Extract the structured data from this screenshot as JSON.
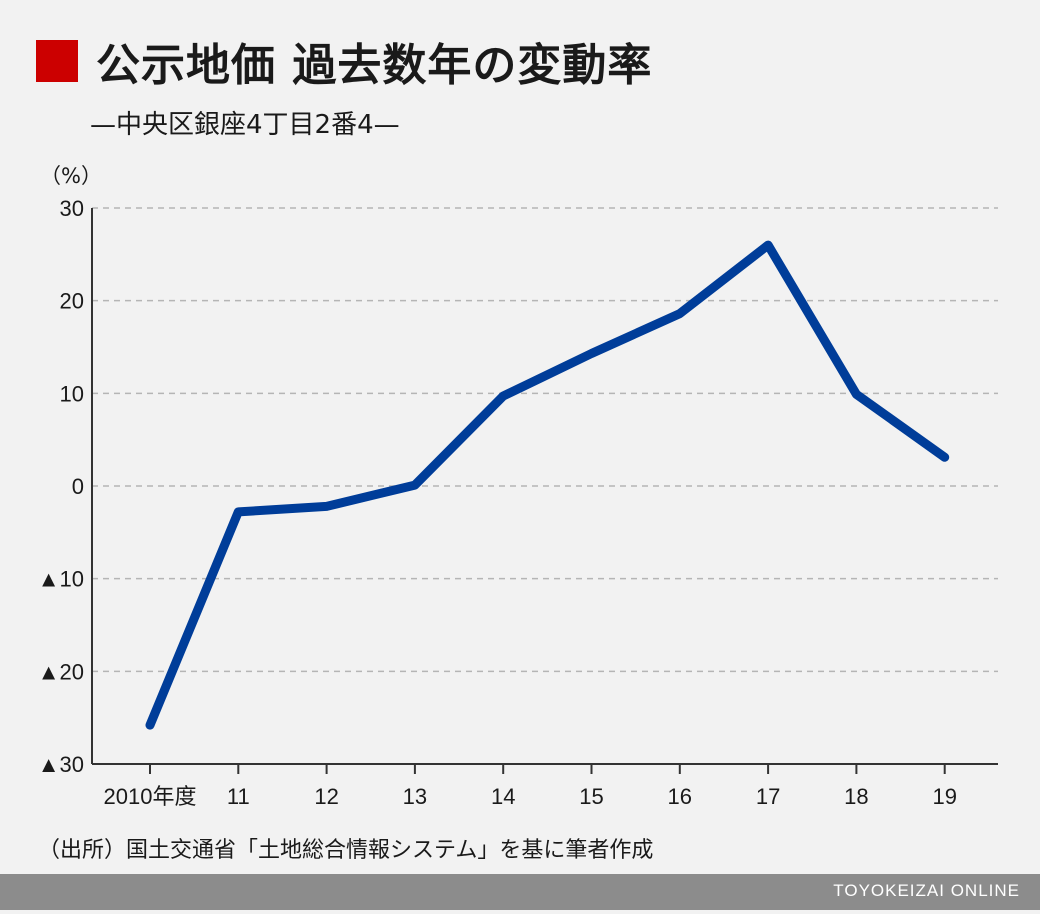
{
  "header": {
    "title": "公示地価 過去数年の変動率",
    "subtitle": "—中央区銀座4丁目2番4—",
    "accent_color": "#cc0000"
  },
  "chart_data": {
    "type": "line",
    "unit_label": "（%）",
    "categories": [
      "2010年度",
      "11",
      "12",
      "13",
      "14",
      "15",
      "16",
      "17",
      "18",
      "19"
    ],
    "series": [
      {
        "values": [
          -25.8,
          -2.8,
          -2.2,
          0.1,
          9.7,
          14.3,
          18.6,
          26.0,
          9.9,
          3.1
        ]
      }
    ],
    "ylim": [
      -30,
      30
    ],
    "yticks": [
      30,
      20,
      10,
      0,
      -10,
      -20,
      -30
    ],
    "ytick_labels": [
      "30",
      "20",
      "10",
      "0",
      "▲10",
      "▲20",
      "▲30"
    ],
    "grid": true,
    "line_color": "#003d99"
  },
  "footer": {
    "source": "（出所）国土交通省「土地総合情報システム」を基に筆者作成",
    "brand": "TOYOKEIZAI ONLINE"
  }
}
